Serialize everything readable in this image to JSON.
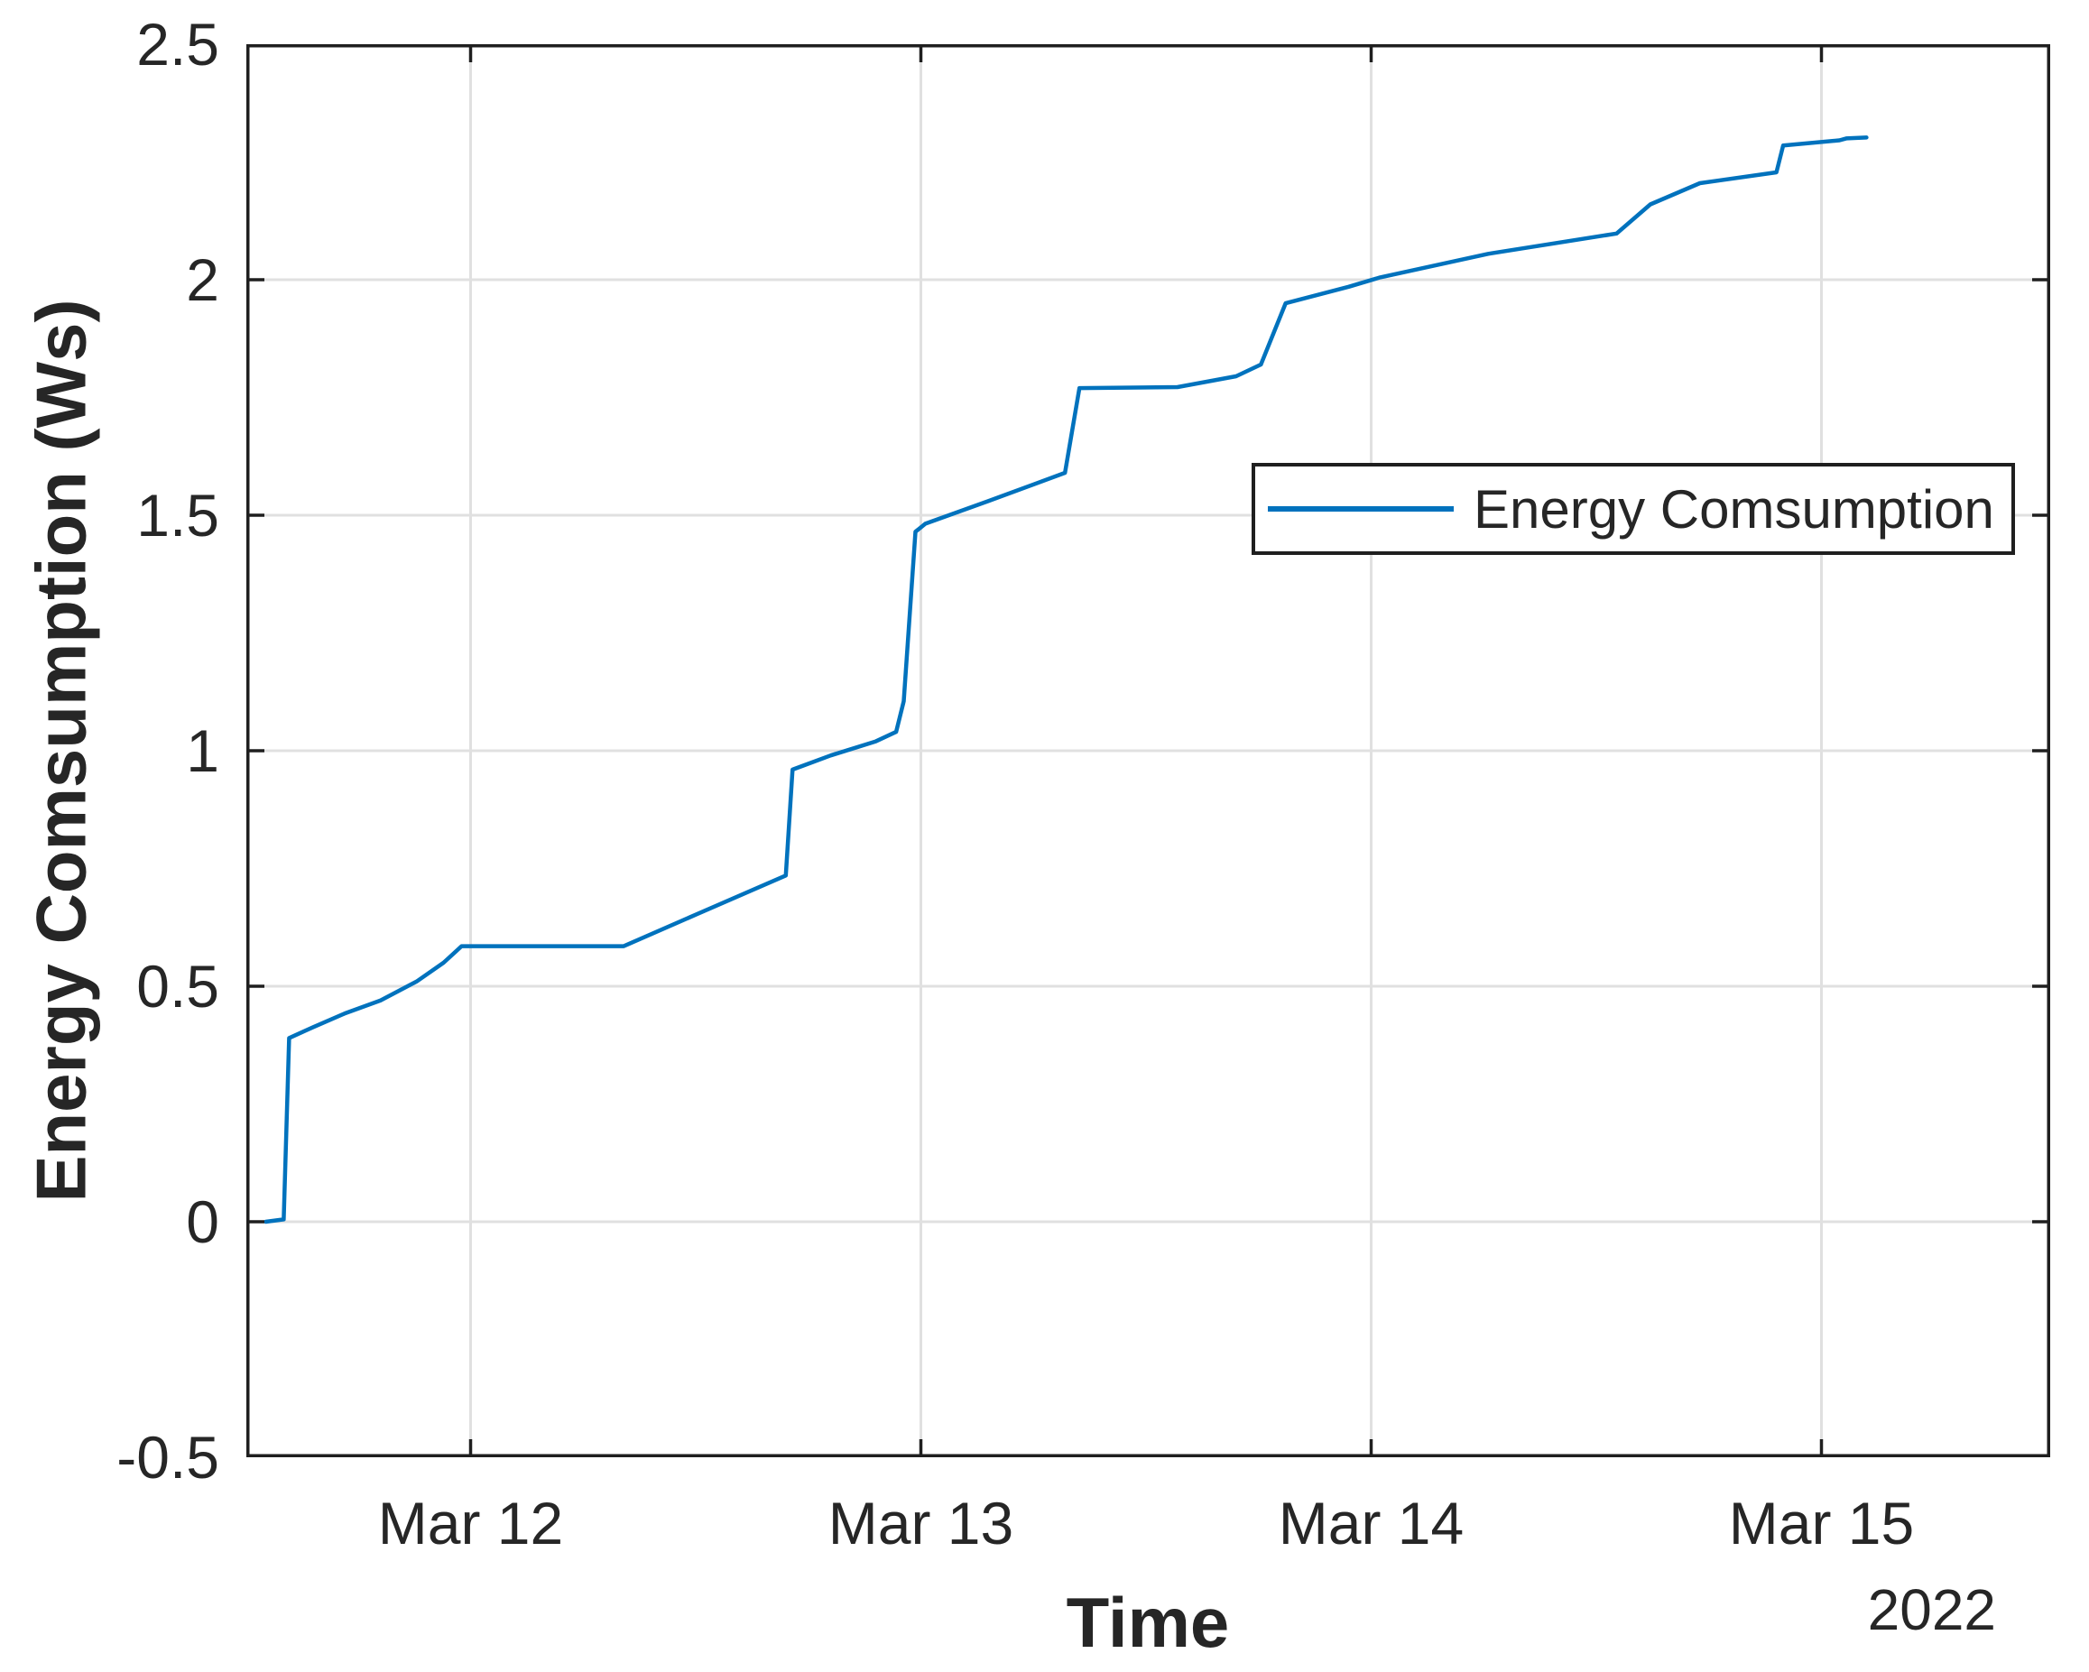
{
  "figure": {
    "background": "#ffffff",
    "axis_color": "#1f1f1f",
    "grid_color": "#e0e0e0",
    "text_color": "#262626",
    "line_color": "#0072BD"
  },
  "chart_data": {
    "type": "line",
    "title": "",
    "xlabel": "Time",
    "xlabel_secondary": "2022",
    "ylabel": "Energy Comsumption (Ws)",
    "x_unit": "day of March 2022 (decimal)",
    "xlim": [
      11.502,
      15.508
    ],
    "ylim": [
      -0.5,
      2.5
    ],
    "grid": true,
    "legend_position": "right-middle-inside",
    "x_ticks": [
      {
        "value": 12,
        "label": "Mar 12"
      },
      {
        "value": 13,
        "label": "Mar 13"
      },
      {
        "value": 14,
        "label": "Mar 14"
      },
      {
        "value": 15,
        "label": "Mar 15"
      }
    ],
    "y_ticks": [
      {
        "value": 2.5,
        "label": "2.5"
      },
      {
        "value": 2,
        "label": "2"
      },
      {
        "value": 1.5,
        "label": "1.5"
      },
      {
        "value": 1,
        "label": "1"
      },
      {
        "value": 0.5,
        "label": "0.5"
      },
      {
        "value": 0,
        "label": "0"
      },
      {
        "value": -0.5,
        "label": "-0.5"
      }
    ],
    "series": [
      {
        "name": "Energy Comsumption",
        "color": "#0072BD",
        "x": [
          11.545,
          11.585,
          11.597,
          11.65,
          11.72,
          11.8,
          11.88,
          11.94,
          11.98,
          12.34,
          12.5,
          12.7,
          12.715,
          12.8,
          12.9,
          12.945,
          12.962,
          12.988,
          13.01,
          13.15,
          13.32,
          13.352,
          13.57,
          13.7,
          13.755,
          13.81,
          13.95,
          14.02,
          14.26,
          14.545,
          14.62,
          14.73,
          14.9,
          14.915,
          15.04,
          15.055,
          15.1
        ],
        "y": [
          0.0,
          0.005,
          0.39,
          0.413,
          0.442,
          0.47,
          0.51,
          0.55,
          0.585,
          0.585,
          0.652,
          0.735,
          0.96,
          0.99,
          1.02,
          1.04,
          1.105,
          1.465,
          1.482,
          1.53,
          1.59,
          1.77,
          1.772,
          1.795,
          1.82,
          1.95,
          1.985,
          2.005,
          2.055,
          2.098,
          2.16,
          2.205,
          2.228,
          2.285,
          2.296,
          2.3,
          2.302
        ]
      }
    ]
  },
  "legend": {
    "entries": [
      {
        "label": "Energy Comsumption",
        "color": "#0072BD"
      }
    ]
  }
}
